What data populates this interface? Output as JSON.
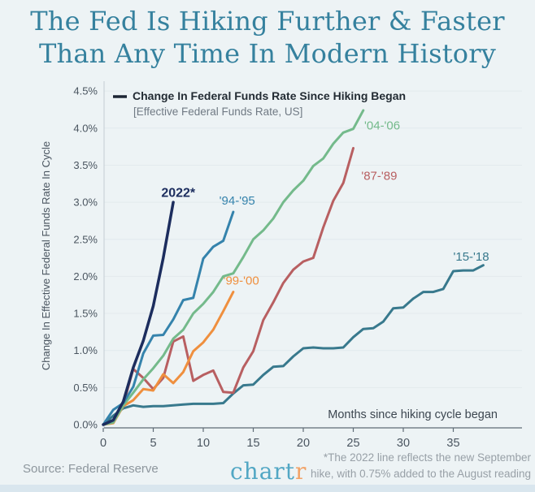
{
  "title": {
    "line1": "The Fed Is Hiking Further & Faster",
    "line2": "Than Any Time In Modern History"
  },
  "footer": {
    "source": "Source: Federal Reserve",
    "logo_main": "chart",
    "logo_accent": "r",
    "footnote_line1": "*The 2022 line reflects the new September",
    "footnote_line2": "hike, with 0.75% added to the August reading"
  },
  "colors": {
    "background": "#edf3f5",
    "title": "#35819e",
    "axis_text": "#4a5560",
    "grid": "#e2eaed",
    "axis_line": "#5f6b76",
    "legend_swatch": "#1b2433",
    "footer_text": "#8d969d",
    "logo_teal": "#52a7c4",
    "logo_orange": "#f2a266"
  },
  "chart_data": {
    "type": "line",
    "legend": "Change In Federal Funds Rate Since Hiking Began",
    "legend_sub": "[Effective Federal Funds Rate, US]",
    "xlabel": "Months since hiking cycle began",
    "ylabel": "Change In Effective Federal Funds Rate In Cycle",
    "x_ticks": [
      0,
      5,
      10,
      15,
      20,
      25,
      30,
      35
    ],
    "y_ticks": [
      "0.0%",
      "0.5%",
      "1.0%",
      "1.5%",
      "2.0%",
      "2.5%",
      "3.0%",
      "3.5%",
      "4.0%",
      "4.5%"
    ],
    "xlim": [
      0,
      40
    ],
    "ylim": [
      0,
      4.6
    ],
    "grid": "horizontal",
    "x_unit": "months since hiking cycle began",
    "series": [
      {
        "name": "'15-'18",
        "color": "#38798d",
        "width": 3,
        "label": {
          "text": "'15-'18",
          "month": 35.0,
          "value": 2.21,
          "anchor": "start",
          "bold": false
        },
        "values": [
          0,
          0.12,
          0.22,
          0.26,
          0.24,
          0.25,
          0.25,
          0.26,
          0.27,
          0.28,
          0.28,
          0.28,
          0.29,
          0.42,
          0.53,
          0.54,
          0.67,
          0.78,
          0.79,
          0.92,
          1.03,
          1.04,
          1.03,
          1.03,
          1.04,
          1.18,
          1.29,
          1.3,
          1.39,
          1.57,
          1.58,
          1.7,
          1.79,
          1.79,
          1.83,
          2.07,
          2.08,
          2.08,
          2.15
        ]
      },
      {
        "name": "'87-'89",
        "color": "#b85f61",
        "width": 3,
        "label": {
          "text": "'87-'89",
          "month": 25.8,
          "value": 3.3,
          "anchor": "start",
          "bold": false
        },
        "values": [
          0,
          0.03,
          0.27,
          0.75,
          0.63,
          0.48,
          0.63,
          1.12,
          1.19,
          0.59,
          0.67,
          0.73,
          0.44,
          0.43,
          0.77,
          0.99,
          1.41,
          1.65,
          1.91,
          2.09,
          2.2,
          2.25,
          2.66,
          3.02,
          3.26,
          3.73
        ]
      },
      {
        "name": "'99-'00",
        "color": "#ef8f3e",
        "width": 3,
        "label": {
          "text": "'99-'00",
          "month": 12.0,
          "value": 1.89,
          "anchor": "start",
          "bold": false
        },
        "values": [
          0,
          0.02,
          0.25,
          0.33,
          0.48,
          0.46,
          0.68,
          0.56,
          0.71,
          0.99,
          1.11,
          1.28,
          1.53,
          1.79
        ]
      },
      {
        "name": "'04-'06",
        "color": "#74ba8b",
        "width": 3,
        "label": {
          "text": "'04-'06",
          "month": 26.1,
          "value": 3.98,
          "anchor": "start",
          "bold": false
        },
        "values": [
          0,
          0.03,
          0.26,
          0.43,
          0.61,
          0.76,
          0.93,
          1.16,
          1.28,
          1.5,
          1.63,
          1.79,
          2.0,
          2.04,
          2.26,
          2.5,
          2.62,
          2.78,
          3.0,
          3.16,
          3.29,
          3.49,
          3.59,
          3.79,
          3.94,
          3.99,
          4.24
        ]
      },
      {
        "name": "'94-'95",
        "color": "#3583ac",
        "width": 3,
        "label": {
          "text": "'94-'95",
          "month": 11.6,
          "value": 2.97,
          "anchor": "start",
          "bold": false
        },
        "values": [
          0,
          0.2,
          0.29,
          0.51,
          0.96,
          1.2,
          1.21,
          1.42,
          1.68,
          1.71,
          2.24,
          2.4,
          2.48,
          2.87
        ]
      },
      {
        "name": "2022*",
        "color": "#1c2d5e",
        "width": 3.5,
        "label": {
          "text": "2022*",
          "month": 7.5,
          "value": 3.07,
          "anchor": "middle",
          "bold": true
        },
        "values": [
          0,
          0.06,
          0.31,
          0.77,
          1.13,
          1.6,
          2.25,
          3.0
        ]
      }
    ]
  }
}
